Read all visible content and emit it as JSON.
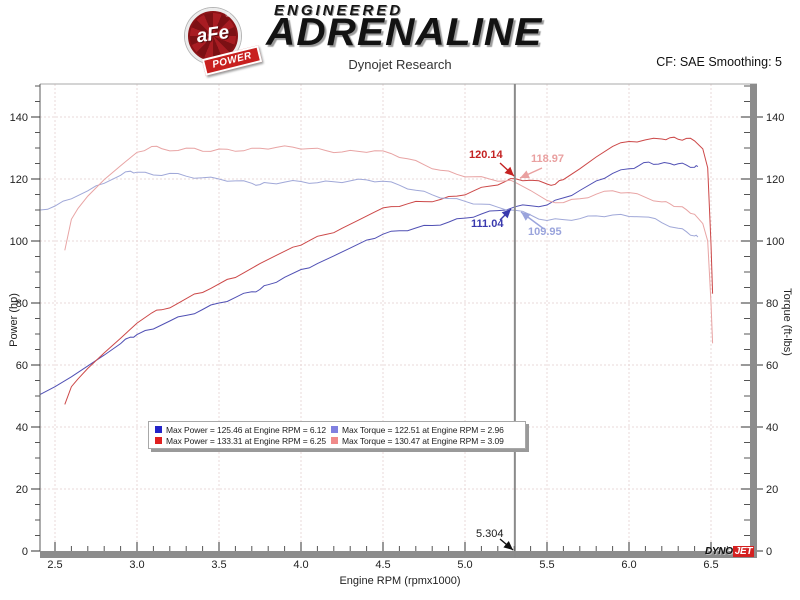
{
  "header": {
    "badge_text": "aFe",
    "badge_reg": "®",
    "badge_sub": "POWER",
    "brand_line1": "ENGINEERED",
    "brand_line2": "ADRENALINE",
    "subtitle": "Dynojet Research",
    "smoothing": "CF: SAE Smoothing: 5"
  },
  "footer_logo": {
    "dyno": "DYNO",
    "jet": "JET"
  },
  "cursor": {
    "rpm_label": "5.304",
    "readouts": [
      {
        "id": "power-afe",
        "text": "120.14",
        "color": "#c42222"
      },
      {
        "id": "torque-afe",
        "text": "118.97",
        "color": "#e9a0a0"
      },
      {
        "id": "power-stock",
        "text": "111.04",
        "color": "#3a3aae"
      },
      {
        "id": "torque-stock",
        "text": "109.95",
        "color": "#9aa4dc"
      }
    ]
  },
  "chart_data": {
    "type": "line",
    "title": "Dynojet Research",
    "xlabel": "Engine RPM (rpmx1000)",
    "ylabel_left": "Power (hp)",
    "ylabel_right": "Torque (ft-lbs)",
    "x_range": [
      2.41,
      6.74
    ],
    "ylim": [
      0,
      150
    ],
    "x_ticks": [
      "2.5",
      "3.0",
      "3.5",
      "4.0",
      "4.5",
      "5.0",
      "5.5",
      "6.0",
      "6.5"
    ],
    "y_ticks": [
      0,
      20,
      40,
      60,
      80,
      100,
      120,
      140
    ],
    "x_minor_step": 0.1,
    "y_minor_step": 5,
    "grid": "dotted",
    "legend_position": "bottom-left-box",
    "cursor_rpm": 5.304,
    "series": [
      {
        "name": "Max Power = 125.46 at Engine RPM = 6.12",
        "swatch": "#2424c8",
        "color": "#5050b4",
        "axis": "power",
        "max": {
          "value": 125.46,
          "rpm": 6.12
        },
        "points": [
          [
            2.41,
            50.5
          ],
          [
            2.5,
            53.0
          ],
          [
            2.6,
            56.2
          ],
          [
            2.7,
            59.7
          ],
          [
            2.8,
            63.2
          ],
          [
            2.9,
            66.9
          ],
          [
            2.96,
            69.0
          ],
          [
            3.0,
            69.8
          ],
          [
            3.1,
            71.6
          ],
          [
            3.2,
            74.2
          ],
          [
            3.3,
            76.0
          ],
          [
            3.4,
            77.9
          ],
          [
            3.5,
            80.0
          ],
          [
            3.6,
            81.8
          ],
          [
            3.7,
            83.6
          ],
          [
            3.75,
            84.4
          ],
          [
            3.8,
            85.9
          ],
          [
            3.9,
            88.3
          ],
          [
            4.0,
            90.8
          ],
          [
            4.1,
            92.7
          ],
          [
            4.2,
            95.2
          ],
          [
            4.3,
            97.7
          ],
          [
            4.4,
            100.3
          ],
          [
            4.5,
            102.2
          ],
          [
            4.6,
            103.3
          ],
          [
            4.7,
            104.2
          ],
          [
            4.8,
            105.0
          ],
          [
            4.9,
            106.1
          ],
          [
            5.0,
            107.4
          ],
          [
            5.1,
            108.7
          ],
          [
            5.2,
            109.8
          ],
          [
            5.304,
            111.04
          ],
          [
            5.4,
            111.4
          ],
          [
            5.5,
            111.6
          ],
          [
            5.6,
            113.9
          ],
          [
            5.7,
            116.3
          ],
          [
            5.8,
            119.4
          ],
          [
            5.9,
            121.8
          ],
          [
            6.0,
            123.3
          ],
          [
            6.06,
            124.3
          ],
          [
            6.12,
            125.46
          ],
          [
            6.18,
            124.8
          ],
          [
            6.25,
            125.0
          ],
          [
            6.3,
            124.9
          ],
          [
            6.35,
            124.5
          ],
          [
            6.4,
            123.8
          ],
          [
            6.42,
            124.0
          ]
        ]
      },
      {
        "name": "Max Power = 133.31 at Engine RPM = 6.25",
        "swatch": "#e02020",
        "color": "#cc4848",
        "axis": "power",
        "max": {
          "value": 133.31,
          "rpm": 6.25
        },
        "points": [
          [
            2.56,
            47.3
          ],
          [
            2.6,
            53.0
          ],
          [
            2.64,
            55.5
          ],
          [
            2.7,
            58.9
          ],
          [
            2.8,
            63.9
          ],
          [
            2.9,
            68.6
          ],
          [
            3.0,
            73.5
          ],
          [
            3.09,
            76.8
          ],
          [
            3.15,
            77.8
          ],
          [
            3.25,
            79.9
          ],
          [
            3.35,
            82.9
          ],
          [
            3.45,
            84.7
          ],
          [
            3.55,
            87.6
          ],
          [
            3.65,
            89.7
          ],
          [
            3.75,
            92.7
          ],
          [
            3.85,
            95.4
          ],
          [
            3.95,
            98.0
          ],
          [
            4.05,
            100.1
          ],
          [
            4.15,
            102.1
          ],
          [
            4.25,
            104.1
          ],
          [
            4.35,
            106.7
          ],
          [
            4.45,
            109.4
          ],
          [
            4.55,
            111.1
          ],
          [
            4.65,
            112.0
          ],
          [
            4.75,
            112.7
          ],
          [
            4.85,
            113.4
          ],
          [
            4.95,
            114.5
          ],
          [
            5.05,
            116.1
          ],
          [
            5.15,
            117.7
          ],
          [
            5.25,
            119.3
          ],
          [
            5.304,
            120.14
          ],
          [
            5.4,
            119.6
          ],
          [
            5.5,
            118.4
          ],
          [
            5.55,
            118.3
          ],
          [
            5.6,
            119.8
          ],
          [
            5.7,
            123.3
          ],
          [
            5.8,
            127.1
          ],
          [
            5.9,
            130.5
          ],
          [
            6.0,
            132.1
          ],
          [
            6.1,
            132.6
          ],
          [
            6.2,
            132.9
          ],
          [
            6.25,
            133.31
          ],
          [
            6.3,
            132.8
          ],
          [
            6.35,
            133.1
          ],
          [
            6.4,
            132.3
          ],
          [
            6.45,
            129.7
          ],
          [
            6.48,
            123.6
          ],
          [
            6.5,
            99.0
          ],
          [
            6.51,
            83.0
          ]
        ]
      },
      {
        "name": "Max Torque = 122.51 at Engine RPM = 2.96",
        "swatch": "#8080e0",
        "color": "#a0a8d8",
        "axis": "torque",
        "max": {
          "value": 122.51,
          "rpm": 2.96
        },
        "points": [
          [
            2.41,
            110.0
          ],
          [
            2.5,
            111.3
          ],
          [
            2.6,
            113.6
          ],
          [
            2.7,
            116.2
          ],
          [
            2.8,
            118.6
          ],
          [
            2.9,
            121.2
          ],
          [
            2.96,
            122.51
          ],
          [
            3.0,
            122.2
          ],
          [
            3.1,
            121.3
          ],
          [
            3.2,
            121.8
          ],
          [
            3.3,
            120.9
          ],
          [
            3.4,
            120.4
          ],
          [
            3.5,
            120.0
          ],
          [
            3.6,
            119.4
          ],
          [
            3.7,
            118.6
          ],
          [
            3.75,
            118.2
          ],
          [
            3.8,
            118.7
          ],
          [
            3.9,
            119.0
          ],
          [
            4.0,
            119.2
          ],
          [
            4.1,
            118.8
          ],
          [
            4.2,
            119.1
          ],
          [
            4.3,
            119.4
          ],
          [
            4.4,
            119.7
          ],
          [
            4.5,
            119.3
          ],
          [
            4.6,
            118.0
          ],
          [
            4.7,
            116.4
          ],
          [
            4.8,
            114.9
          ],
          [
            4.9,
            113.7
          ],
          [
            5.0,
            112.8
          ],
          [
            5.1,
            111.9
          ],
          [
            5.2,
            110.9
          ],
          [
            5.304,
            109.95
          ],
          [
            5.4,
            108.4
          ],
          [
            5.5,
            106.6
          ],
          [
            5.6,
            106.9
          ],
          [
            5.7,
            107.2
          ],
          [
            5.8,
            108.1
          ],
          [
            5.9,
            108.4
          ],
          [
            6.0,
            107.9
          ],
          [
            6.12,
            107.7
          ],
          [
            6.2,
            105.9
          ],
          [
            6.3,
            104.1
          ],
          [
            6.35,
            103.0
          ],
          [
            6.4,
            101.6
          ],
          [
            6.42,
            101.3
          ]
        ]
      },
      {
        "name": "Max Torque = 130.47 at Engine RPM = 3.09",
        "swatch": "#f08a8a",
        "color": "#e8a4a4",
        "axis": "torque",
        "max": {
          "value": 130.47,
          "rpm": 3.09
        },
        "points": [
          [
            2.56,
            97.0
          ],
          [
            2.6,
            107.0
          ],
          [
            2.64,
            110.5
          ],
          [
            2.7,
            114.5
          ],
          [
            2.8,
            119.8
          ],
          [
            2.9,
            124.3
          ],
          [
            3.0,
            128.6
          ],
          [
            3.09,
            130.47
          ],
          [
            3.15,
            129.8
          ],
          [
            3.25,
            129.2
          ],
          [
            3.35,
            129.9
          ],
          [
            3.45,
            128.9
          ],
          [
            3.55,
            129.6
          ],
          [
            3.65,
            129.1
          ],
          [
            3.75,
            129.9
          ],
          [
            3.85,
            130.2
          ],
          [
            3.95,
            130.3
          ],
          [
            4.05,
            129.8
          ],
          [
            4.15,
            129.2
          ],
          [
            4.25,
            128.7
          ],
          [
            4.35,
            128.9
          ],
          [
            4.45,
            129.1
          ],
          [
            4.55,
            128.2
          ],
          [
            4.65,
            126.5
          ],
          [
            4.75,
            124.6
          ],
          [
            4.85,
            122.8
          ],
          [
            4.95,
            121.5
          ],
          [
            5.05,
            120.7
          ],
          [
            5.15,
            120.0
          ],
          [
            5.25,
            119.4
          ],
          [
            5.304,
            118.97
          ],
          [
            5.4,
            116.3
          ],
          [
            5.5,
            113.1
          ],
          [
            5.6,
            112.4
          ],
          [
            5.7,
            113.6
          ],
          [
            5.8,
            115.1
          ],
          [
            5.9,
            116.2
          ],
          [
            6.0,
            115.6
          ],
          [
            6.1,
            114.1
          ],
          [
            6.2,
            112.6
          ],
          [
            6.25,
            112.0
          ],
          [
            6.3,
            111.1
          ],
          [
            6.35,
            110.1
          ],
          [
            6.4,
            108.6
          ],
          [
            6.45,
            105.6
          ],
          [
            6.48,
            100.0
          ],
          [
            6.5,
            80.0
          ],
          [
            6.51,
            67.0
          ]
        ]
      }
    ]
  }
}
